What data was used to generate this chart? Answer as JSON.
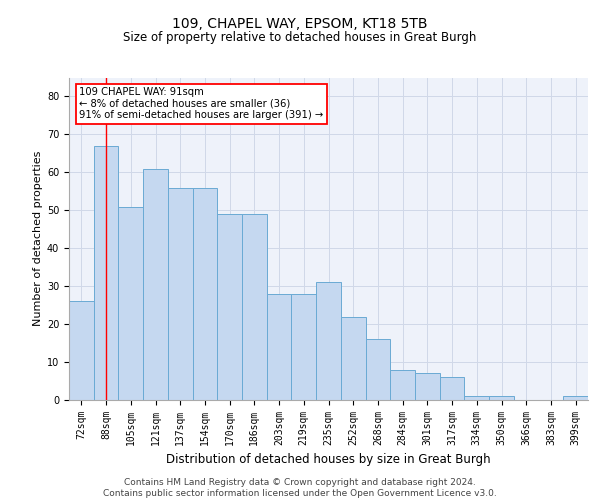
{
  "title1": "109, CHAPEL WAY, EPSOM, KT18 5TB",
  "title2": "Size of property relative to detached houses in Great Burgh",
  "xlabel": "Distribution of detached houses by size in Great Burgh",
  "ylabel": "Number of detached properties",
  "categories": [
    "72sqm",
    "88sqm",
    "105sqm",
    "121sqm",
    "137sqm",
    "154sqm",
    "170sqm",
    "186sqm",
    "203sqm",
    "219sqm",
    "235sqm",
    "252sqm",
    "268sqm",
    "284sqm",
    "301sqm",
    "317sqm",
    "334sqm",
    "350sqm",
    "366sqm",
    "383sqm",
    "399sqm"
  ],
  "values": [
    26,
    67,
    51,
    61,
    56,
    56,
    49,
    49,
    28,
    28,
    31,
    22,
    16,
    8,
    7,
    6,
    1,
    1,
    0,
    0,
    1
  ],
  "bar_color": "#c5d8f0",
  "bar_edge_color": "#6aaad4",
  "red_line_x": 1,
  "annotation_text": "109 CHAPEL WAY: 91sqm\n← 8% of detached houses are smaller (36)\n91% of semi-detached houses are larger (391) →",
  "annotation_box_color": "white",
  "annotation_box_edge_color": "red",
  "ylim": [
    0,
    85
  ],
  "yticks": [
    0,
    10,
    20,
    30,
    40,
    50,
    60,
    70,
    80
  ],
  "footer1": "Contains HM Land Registry data © Crown copyright and database right 2024.",
  "footer2": "Contains public sector information licensed under the Open Government Licence v3.0.",
  "grid_color": "#d0d8e8",
  "background_color": "#eef2fa",
  "title_fontsize": 10,
  "subtitle_fontsize": 8.5,
  "xlabel_fontsize": 8.5,
  "ylabel_fontsize": 8,
  "tick_fontsize": 7,
  "footer_fontsize": 6.5
}
